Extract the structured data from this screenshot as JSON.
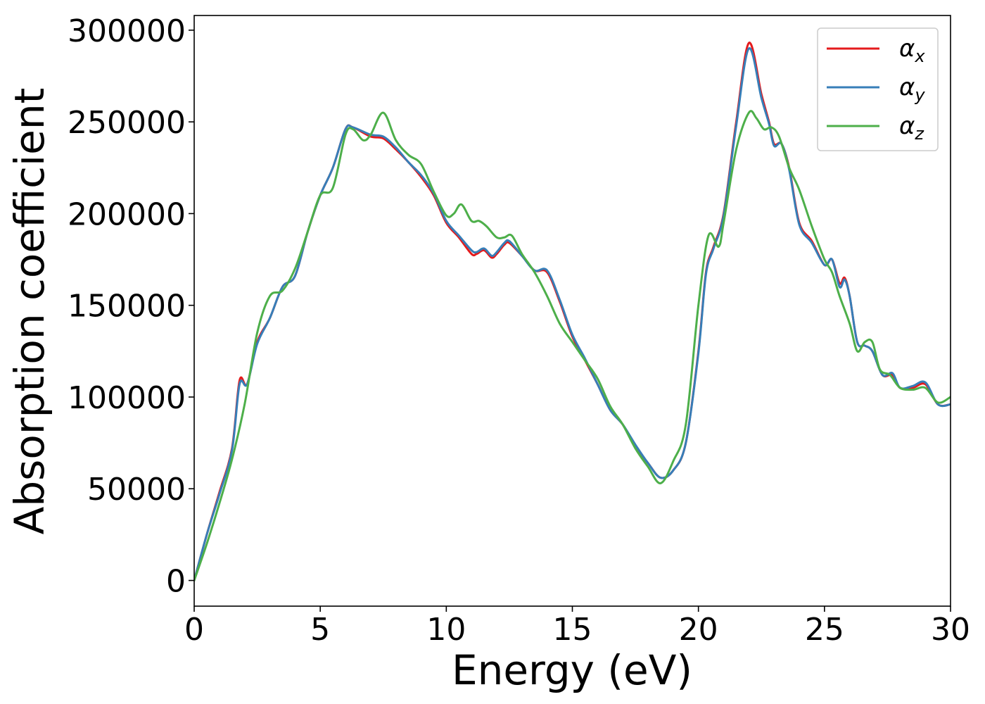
{
  "chart_data": {
    "type": "line",
    "title": "",
    "xlabel": "Energy (eV)",
    "ylabel": "Absorption coefficient",
    "xlim": [
      0,
      30
    ],
    "ylim": [
      -14000,
      308000
    ],
    "xticks": [
      0,
      5,
      10,
      15,
      20,
      25,
      30
    ],
    "yticks": [
      0,
      50000,
      100000,
      150000,
      200000,
      250000,
      300000
    ],
    "xtick_labels": [
      "0",
      "5",
      "10",
      "15",
      "20",
      "25",
      "30"
    ],
    "ytick_labels": [
      "0",
      "50000",
      "100000",
      "150000",
      "200000",
      "250000",
      "300000"
    ],
    "grid": false,
    "legend_position": "top-right",
    "series": [
      {
        "name": "α",
        "subscript": "x",
        "color": "#e41a1c",
        "x": [
          0,
          0.5,
          1.0,
          1.5,
          1.8,
          2.1,
          2.5,
          3.0,
          3.5,
          4.0,
          4.5,
          5.0,
          5.5,
          6.0,
          6.3,
          7.0,
          7.5,
          8.0,
          8.5,
          9.0,
          9.5,
          10.0,
          10.5,
          11.0,
          11.2,
          11.5,
          11.8,
          12.0,
          12.3,
          12.5,
          13.0,
          13.5,
          14.0,
          14.5,
          15.0,
          15.5,
          16.0,
          16.5,
          17.0,
          17.5,
          18.0,
          18.5,
          19.0,
          19.5,
          20.0,
          20.3,
          20.6,
          21.0,
          21.5,
          22.0,
          22.5,
          22.8,
          23.0,
          23.3,
          23.6,
          24.0,
          24.5,
          25.0,
          25.3,
          25.6,
          25.8,
          26.0,
          26.3,
          26.6,
          26.9,
          27.3,
          27.7,
          28.0,
          28.5,
          29.0,
          29.5,
          30.0
        ],
        "y": [
          0,
          25000,
          48000,
          72000,
          109000,
          107000,
          130000,
          143000,
          160000,
          166000,
          190000,
          210000,
          225000,
          246000,
          247000,
          242000,
          241000,
          235000,
          228000,
          220000,
          210000,
          195000,
          187000,
          178000,
          178000,
          180000,
          176000,
          178000,
          183000,
          184000,
          177000,
          169000,
          168000,
          152000,
          133000,
          120000,
          107000,
          93000,
          85000,
          73000,
          64000,
          56000,
          60000,
          75000,
          125000,
          168000,
          182000,
          200000,
          250000,
          293000,
          265000,
          250000,
          238000,
          238000,
          225000,
          195000,
          185000,
          172000,
          175000,
          162000,
          165000,
          155000,
          130000,
          128000,
          125000,
          112000,
          112000,
          105000,
          105000,
          107000,
          96000,
          96000
        ]
      },
      {
        "name": "α",
        "subscript": "y",
        "color": "#377eb8",
        "x": [
          0,
          0.5,
          1.0,
          1.5,
          1.8,
          2.1,
          2.5,
          3.0,
          3.5,
          4.0,
          4.5,
          5.0,
          5.5,
          6.0,
          6.3,
          7.0,
          7.5,
          8.0,
          8.5,
          9.0,
          9.5,
          10.0,
          10.5,
          11.0,
          11.2,
          11.5,
          11.8,
          12.0,
          12.3,
          12.5,
          13.0,
          13.5,
          14.0,
          14.5,
          15.0,
          15.5,
          16.0,
          16.5,
          17.0,
          17.5,
          18.0,
          18.5,
          19.0,
          19.5,
          20.0,
          20.3,
          20.6,
          21.0,
          21.5,
          22.0,
          22.5,
          22.8,
          23.0,
          23.3,
          23.6,
          24.0,
          24.5,
          25.0,
          25.3,
          25.6,
          25.8,
          26.0,
          26.3,
          26.6,
          26.9,
          27.3,
          27.7,
          28.0,
          28.5,
          29.0,
          29.5,
          30.0
        ],
        "y": [
          0,
          25000,
          47000,
          71000,
          107000,
          107000,
          129000,
          143000,
          160000,
          166000,
          190000,
          210000,
          225000,
          246000,
          247000,
          243000,
          242000,
          236000,
          228000,
          221000,
          211000,
          196000,
          188000,
          180000,
          179000,
          181000,
          177000,
          179000,
          184000,
          185000,
          177000,
          169000,
          169000,
          153000,
          134000,
          121000,
          107000,
          93000,
          85000,
          74000,
          64000,
          56000,
          60000,
          75000,
          124000,
          167000,
          181000,
          199000,
          248000,
          290000,
          263000,
          249000,
          237000,
          238000,
          224000,
          194000,
          184000,
          172000,
          175000,
          160000,
          164000,
          155000,
          130000,
          128000,
          125000,
          112000,
          113000,
          105000,
          106000,
          108000,
          96000,
          96000
        ]
      },
      {
        "name": "α",
        "subscript": "z",
        "color": "#4daf4a",
        "x": [
          0,
          0.5,
          1.0,
          1.5,
          2.0,
          2.5,
          3.0,
          3.5,
          4.0,
          4.5,
          5.0,
          5.5,
          6.0,
          6.3,
          6.7,
          7.0,
          7.5,
          8.0,
          8.5,
          9.0,
          9.5,
          10.0,
          10.3,
          10.6,
          11.0,
          11.3,
          11.6,
          12.0,
          12.3,
          12.6,
          13.0,
          13.5,
          14.0,
          14.5,
          15.0,
          15.5,
          16.0,
          16.5,
          17.0,
          17.5,
          18.0,
          18.5,
          19.0,
          19.5,
          20.0,
          20.4,
          20.8,
          21.0,
          21.5,
          22.0,
          22.3,
          22.6,
          22.9,
          23.2,
          23.6,
          24.0,
          24.5,
          25.0,
          25.3,
          25.6,
          26.0,
          26.3,
          26.6,
          26.9,
          27.2,
          27.6,
          28.0,
          28.5,
          29.0,
          29.5,
          30.0
        ],
        "y": [
          0,
          20000,
          42000,
          66000,
          96000,
          135000,
          155000,
          158000,
          170000,
          190000,
          210000,
          214000,
          243000,
          246000,
          240000,
          243000,
          255000,
          240000,
          232000,
          227000,
          212000,
          199000,
          200000,
          205000,
          196000,
          196000,
          193000,
          187000,
          187000,
          188000,
          178000,
          168000,
          155000,
          140000,
          130000,
          120000,
          110000,
          95000,
          85000,
          72000,
          62000,
          53000,
          65000,
          85000,
          150000,
          188000,
          182000,
          195000,
          235000,
          255000,
          252000,
          246000,
          247000,
          242000,
          225000,
          213000,
          193000,
          175000,
          168000,
          155000,
          140000,
          125000,
          130000,
          130000,
          115000,
          112000,
          105000,
          104000,
          105000,
          97000,
          100000
        ]
      }
    ]
  }
}
